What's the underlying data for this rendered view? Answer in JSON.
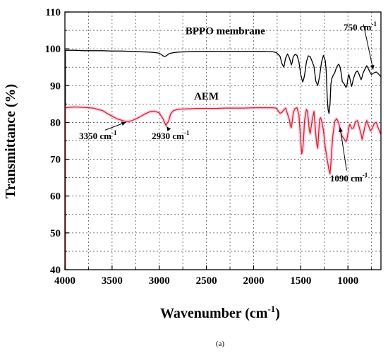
{
  "chart_data": {
    "type": "line",
    "xlabel": "Wavenumber (cm",
    "xlabel_sup": "-1",
    "xlabel_end": ")",
    "ylabel": "Transmittance (%)",
    "xlim": [
      4000,
      650
    ],
    "ylim": [
      40,
      110
    ],
    "x_ticks": [
      4000,
      3500,
      3000,
      2500,
      2000,
      1500,
      1000
    ],
    "y_ticks": [
      40,
      50,
      60,
      70,
      80,
      90,
      100,
      110
    ],
    "x_tick_labels": [
      "4000",
      "3500",
      "3000",
      "2500",
      "2000",
      "1500",
      "1000"
    ],
    "y_tick_labels": [
      "40",
      "50",
      "60",
      "70",
      "80",
      "90",
      "100",
      "110"
    ],
    "grid": true,
    "grid_style": "dotted",
    "series": [
      {
        "name": "BPPO membrane",
        "color": "#000000",
        "x": [
          3995,
          3900,
          3800,
          3700,
          3600,
          3500,
          3400,
          3300,
          3200,
          3100,
          3050,
          3000,
          2980,
          2960,
          2940,
          2920,
          2900,
          2880,
          2860,
          2840,
          2800,
          2700,
          2600,
          2500,
          2400,
          2300,
          2200,
          2100,
          2000,
          1900,
          1800,
          1760,
          1720,
          1700,
          1680,
          1660,
          1640,
          1620,
          1600,
          1590,
          1580,
          1560,
          1540,
          1520,
          1500,
          1480,
          1470,
          1460,
          1440,
          1420,
          1400,
          1380,
          1360,
          1340,
          1320,
          1300,
          1280,
          1260,
          1240,
          1230,
          1220,
          1210,
          1200,
          1190,
          1185,
          1180,
          1170,
          1160,
          1140,
          1120,
          1100,
          1090,
          1080,
          1070,
          1060,
          1040,
          1030,
          1020,
          1010,
          1000,
          990,
          980,
          970,
          960,
          940,
          920,
          900,
          880,
          870,
          860,
          850,
          840,
          820,
          800,
          780,
          760,
          750,
          740,
          720,
          700,
          680,
          660,
          650
        ],
        "y": [
          99.6,
          99.6,
          99.5,
          99.5,
          99.5,
          99.4,
          99.4,
          99.3,
          99.2,
          99.1,
          99.0,
          98.8,
          98.5,
          98.1,
          97.9,
          98.2,
          98.6,
          98.8,
          98.9,
          99.0,
          99.1,
          99.2,
          99.3,
          99.3,
          99.3,
          99.3,
          99.3,
          99.3,
          99.3,
          99.3,
          99.2,
          99.0,
          98.0,
          96.0,
          95.0,
          97.5,
          98.6,
          97.5,
          95.6,
          96.4,
          97.8,
          98.5,
          98.2,
          96.5,
          93.0,
          91.0,
          91.6,
          92.8,
          96.5,
          98.1,
          97.9,
          96.6,
          95.2,
          91.2,
          90.0,
          92.6,
          96.3,
          98.2,
          96.8,
          94.0,
          87.0,
          83.5,
          82.4,
          85.0,
          88.0,
          90.5,
          92.0,
          92.6,
          93.5,
          95.0,
          95.8,
          95.5,
          94.6,
          93.2,
          91.1,
          90.5,
          90.0,
          89.5,
          90.2,
          92.0,
          93.0,
          92.0,
          90.8,
          89.8,
          92.0,
          93.5,
          94.0,
          93.0,
          92.2,
          91.6,
          92.4,
          93.4,
          94.5,
          95.4,
          94.4,
          93.3,
          93.0,
          93.2,
          93.5,
          93.7,
          93.3,
          92.7,
          92.4
        ]
      },
      {
        "name": "AEM",
        "color": "#cc2a1a",
        "x": [
          3995,
          3900,
          3800,
          3700,
          3600,
          3550,
          3500,
          3450,
          3400,
          3350,
          3300,
          3250,
          3200,
          3150,
          3100,
          3050,
          3000,
          2960,
          2930,
          2900,
          2880,
          2850,
          2800,
          2700,
          2600,
          2500,
          2400,
          2300,
          2200,
          2100,
          2000,
          1900,
          1800,
          1760,
          1740,
          1720,
          1700,
          1680,
          1660,
          1640,
          1620,
          1610,
          1600,
          1590,
          1580,
          1560,
          1540,
          1520,
          1500,
          1490,
          1480,
          1470,
          1460,
          1440,
          1430,
          1420,
          1410,
          1400,
          1380,
          1360,
          1340,
          1330,
          1320,
          1310,
          1300,
          1290,
          1280,
          1260,
          1240,
          1220,
          1200,
          1190,
          1180,
          1170,
          1160,
          1150,
          1140,
          1120,
          1100,
          1090,
          1080,
          1070,
          1060,
          1040,
          1020,
          1010,
          1000,
          990,
          980,
          970,
          960,
          940,
          920,
          900,
          880,
          860,
          850,
          840,
          820,
          800,
          780,
          760,
          740,
          720,
          700,
          680,
          660,
          650
        ],
        "y": [
          84.0,
          84.2,
          84.1,
          83.9,
          83.2,
          82.4,
          81.7,
          81.0,
          80.6,
          80.2,
          80.4,
          80.9,
          81.6,
          82.3,
          82.9,
          83.1,
          82.6,
          81.0,
          79.2,
          80.4,
          82.3,
          83.2,
          83.6,
          83.7,
          83.8,
          83.8,
          83.8,
          83.9,
          83.9,
          83.9,
          84.0,
          84.0,
          84.0,
          83.9,
          83.2,
          82.5,
          82.7,
          83.4,
          83.9,
          82.3,
          80.7,
          79.1,
          78.6,
          80.3,
          82.6,
          83.8,
          84.0,
          82.1,
          75.0,
          71.5,
          72.5,
          75.5,
          80.6,
          83.5,
          83.1,
          81.0,
          78.0,
          77.0,
          80.5,
          83.0,
          76.6,
          74.0,
          73.0,
          77.0,
          80.8,
          81.3,
          80.6,
          78.0,
          73.2,
          70.0,
          67.0,
          66.1,
          69.0,
          73.2,
          76.4,
          78.3,
          80.3,
          81.0,
          80.1,
          79.0,
          77.5,
          76.8,
          76.2,
          75.5,
          74.8,
          75.5,
          77.0,
          78.6,
          79.5,
          79.0,
          78.4,
          78.5,
          80.2,
          80.5,
          78.7,
          76.8,
          75.4,
          76.5,
          78.9,
          80.5,
          79.0,
          77.7,
          78.5,
          79.8,
          80.0,
          78.6,
          77.3,
          76.8
        ]
      }
    ],
    "series_labels": [
      {
        "text": "BPPO membrane",
        "x": 2300,
        "y": 104
      },
      {
        "text": "AEM",
        "x": 2500,
        "y": 86.2
      }
    ],
    "annotations": [
      {
        "text": "3350 cm",
        "sup": "-1",
        "label_x": 3650,
        "label_y": 75.5,
        "point_x": 3340,
        "point_y": 80.2
      },
      {
        "text": "2930 cm",
        "sup": "-1",
        "label_x": 2880,
        "label_y": 75.5,
        "point_x": 2930,
        "point_y": 79.2
      },
      {
        "text": "1090 cm",
        "sup": "-1",
        "label_x": 990,
        "label_y": 64.0,
        "point_x": 1085,
        "point_y": 79.0
      },
      {
        "text": "750 cm",
        "sup": "-1",
        "label_x": 870,
        "label_y": 105.0,
        "point_x": 730,
        "point_y": 94.0
      }
    ],
    "caption": "(a)"
  }
}
